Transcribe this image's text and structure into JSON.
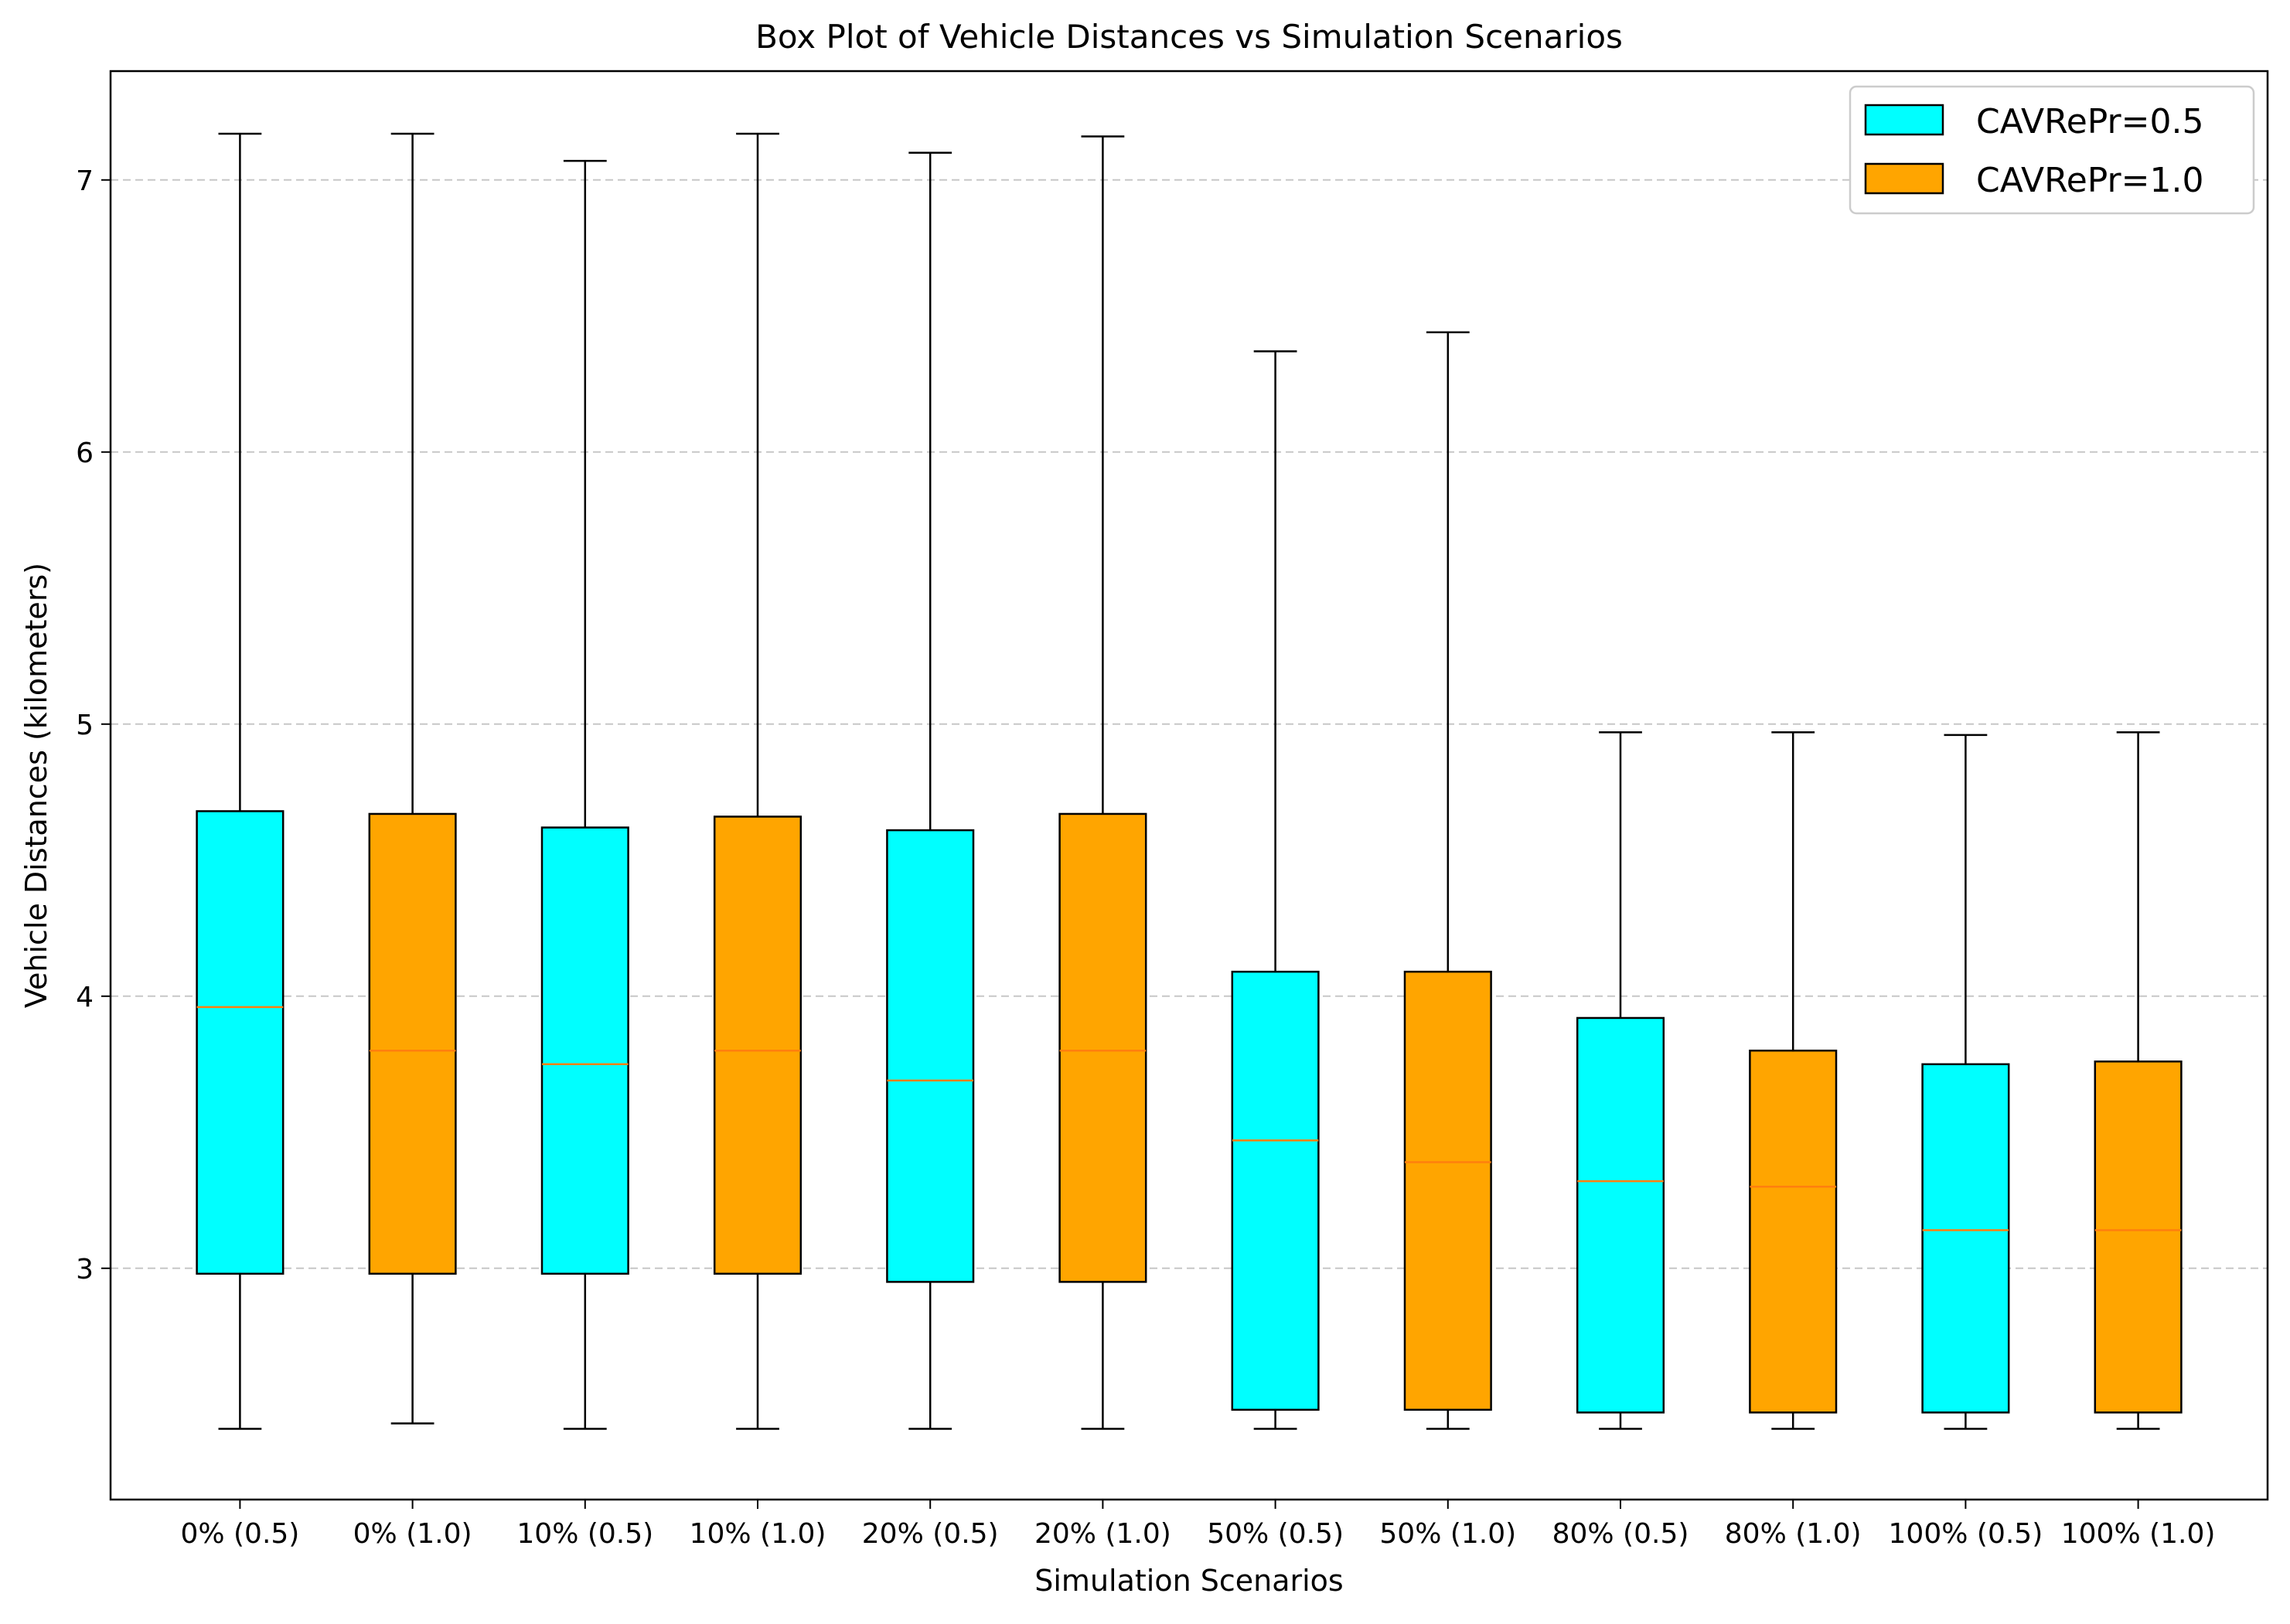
{
  "chart_data": {
    "type": "box",
    "title": "Box Plot of Vehicle Distances vs Simulation Scenarios",
    "xlabel": "Simulation Scenarios",
    "ylabel": "Vehicle Distances (kilometers)",
    "ylim": [
      2.15,
      7.4
    ],
    "yticks": [
      3,
      4,
      5,
      6,
      7
    ],
    "grid": "horizontal dashed",
    "legend_position": "top-right",
    "legend": [
      {
        "label": "CAVRePr=0.5",
        "color": "#00ffff"
      },
      {
        "label": "CAVRePr=1.0",
        "color": "#ffa500"
      }
    ],
    "median_color": "#ff7f0e",
    "categories": [
      "0% (0.5)",
      "0% (1.0)",
      "10% (0.5)",
      "10% (1.0)",
      "20% (0.5)",
      "20% (1.0)",
      "50% (0.5)",
      "50% (1.0)",
      "80% (0.5)",
      "80% (1.0)",
      "100% (0.5)",
      "100% (1.0)"
    ],
    "boxes": [
      {
        "whislo": 2.41,
        "q1": 2.98,
        "med": 3.96,
        "q3": 4.68,
        "whishi": 7.17,
        "color": "#00ffff"
      },
      {
        "whislo": 2.43,
        "q1": 2.98,
        "med": 3.8,
        "q3": 4.67,
        "whishi": 7.17,
        "color": "#ffa500"
      },
      {
        "whislo": 2.41,
        "q1": 2.98,
        "med": 3.75,
        "q3": 4.62,
        "whishi": 7.07,
        "color": "#00ffff"
      },
      {
        "whislo": 2.41,
        "q1": 2.98,
        "med": 3.8,
        "q3": 4.66,
        "whishi": 7.17,
        "color": "#ffa500"
      },
      {
        "whislo": 2.41,
        "q1": 2.95,
        "med": 3.69,
        "q3": 4.61,
        "whishi": 7.1,
        "color": "#00ffff"
      },
      {
        "whislo": 2.41,
        "q1": 2.95,
        "med": 3.8,
        "q3": 4.67,
        "whishi": 7.16,
        "color": "#ffa500"
      },
      {
        "whislo": 2.41,
        "q1": 2.48,
        "med": 3.47,
        "q3": 4.09,
        "whishi": 6.37,
        "color": "#00ffff"
      },
      {
        "whislo": 2.41,
        "q1": 2.48,
        "med": 3.39,
        "q3": 4.09,
        "whishi": 6.44,
        "color": "#ffa500"
      },
      {
        "whislo": 2.41,
        "q1": 2.47,
        "med": 3.32,
        "q3": 3.92,
        "whishi": 4.97,
        "color": "#00ffff"
      },
      {
        "whislo": 2.41,
        "q1": 2.47,
        "med": 3.3,
        "q3": 3.8,
        "whishi": 4.97,
        "color": "#ffa500"
      },
      {
        "whislo": 2.41,
        "q1": 2.47,
        "med": 3.14,
        "q3": 3.75,
        "whishi": 4.96,
        "color": "#00ffff"
      },
      {
        "whislo": 2.41,
        "q1": 2.47,
        "med": 3.14,
        "q3": 3.76,
        "whishi": 4.97,
        "color": "#ffa500"
      }
    ]
  }
}
